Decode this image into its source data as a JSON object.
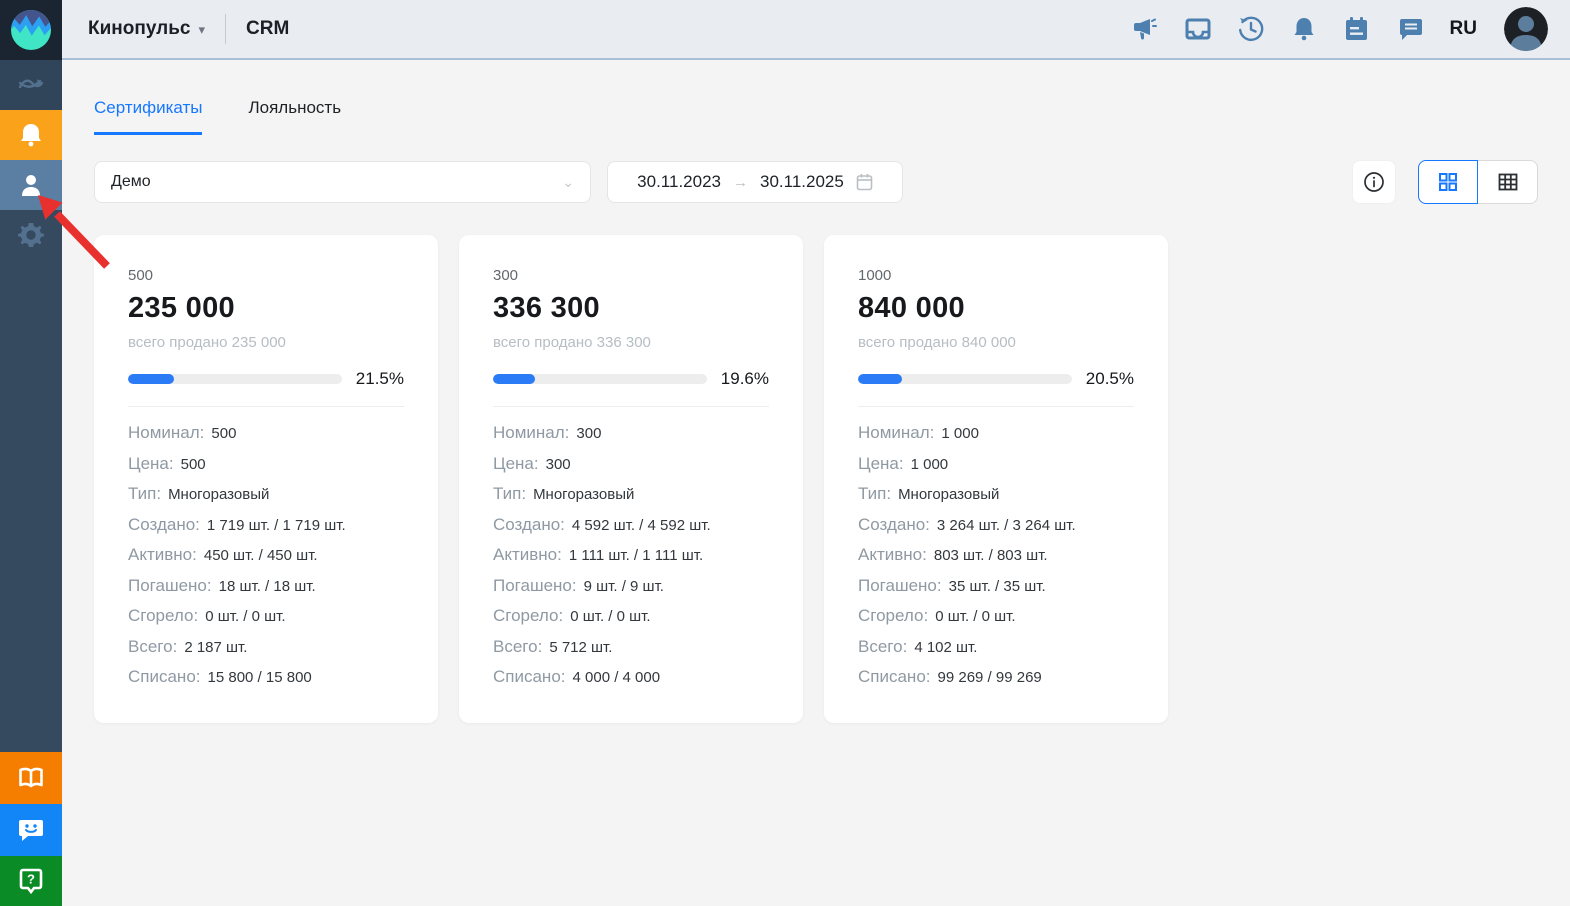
{
  "colors": {
    "accent": "#1677ff",
    "progress": "#2b7bf6",
    "arrow-red": "#e8312e",
    "sidebar-bg": "#35495f",
    "header-bg": "#e9edf2",
    "orange": "#f9a21a"
  },
  "header": {
    "brand": "Кинопульс",
    "app_title": "CRM",
    "language": "RU",
    "icons": [
      "megaphone-icon",
      "inbox-icon",
      "history-icon",
      "bell-icon",
      "calendar-icon",
      "chat-icon",
      "avatar"
    ]
  },
  "sidebar": {
    "items_top": [
      "analytics",
      "notifications (orange)",
      "contacts (selected)",
      "settings"
    ],
    "items_bottom": [
      "knowledge-base (orange)",
      "feedback-chat (blue)",
      "help (green)"
    ]
  },
  "tabs": [
    {
      "label": "Сертификаты",
      "active": true
    },
    {
      "label": "Лояльность",
      "active": false
    }
  ],
  "filters": {
    "certificate_select_value": "Демо",
    "date_from": "30.11.2023",
    "date_to": "30.11.2025"
  },
  "view_toggle": {
    "active": "grid",
    "options": [
      "grid",
      "table"
    ]
  },
  "cards": [
    {
      "title": "500",
      "total": "235 000",
      "subtitle": "всего продано 235 000",
      "progress_percent": 21.5,
      "progress_label": "21.5%",
      "details": [
        {
          "label": "Номинал:",
          "value": "500"
        },
        {
          "label": "Цена:",
          "value": "500"
        },
        {
          "label": "Тип:",
          "value": "Многоразовый"
        },
        {
          "label": "Создано:",
          "value": "1 719 шт. / 1 719 шт."
        },
        {
          "label": "Активно:",
          "value": "450 шт. / 450 шт."
        },
        {
          "label": "Погашено:",
          "value": "18 шт. / 18 шт."
        },
        {
          "label": "Сгорело:",
          "value": "0 шт. / 0 шт."
        },
        {
          "label": "Всего:",
          "value": "2 187 шт."
        },
        {
          "label": "Списано:",
          "value": "15 800 / 15 800"
        }
      ]
    },
    {
      "title": "300",
      "total": "336 300",
      "subtitle": "всего продано 336 300",
      "progress_percent": 19.6,
      "progress_label": "19.6%",
      "details": [
        {
          "label": "Номинал:",
          "value": "300"
        },
        {
          "label": "Цена:",
          "value": "300"
        },
        {
          "label": "Тип:",
          "value": "Многоразовый"
        },
        {
          "label": "Создано:",
          "value": "4 592 шт. / 4 592 шт."
        },
        {
          "label": "Активно:",
          "value": "1 111 шт. / 1 111 шт."
        },
        {
          "label": "Погашено:",
          "value": "9 шт. / 9 шт."
        },
        {
          "label": "Сгорело:",
          "value": "0 шт. / 0 шт."
        },
        {
          "label": "Всего:",
          "value": "5 712 шт."
        },
        {
          "label": "Списано:",
          "value": "4 000 / 4 000"
        }
      ]
    },
    {
      "title": "1000",
      "total": "840 000",
      "subtitle": "всего продано 840 000",
      "progress_percent": 20.5,
      "progress_label": "20.5%",
      "details": [
        {
          "label": "Номинал:",
          "value": "1 000"
        },
        {
          "label": "Цена:",
          "value": "1 000"
        },
        {
          "label": "Тип:",
          "value": "Многоразовый"
        },
        {
          "label": "Создано:",
          "value": "3 264 шт. / 3 264 шт."
        },
        {
          "label": "Активно:",
          "value": "803 шт. / 803 шт."
        },
        {
          "label": "Погашено:",
          "value": "35 шт. / 35 шт."
        },
        {
          "label": "Сгорело:",
          "value": "0 шт. / 0 шт."
        },
        {
          "label": "Всего:",
          "value": "4 102 шт."
        },
        {
          "label": "Списано:",
          "value": "99 269 / 99 269"
        }
      ]
    }
  ],
  "annotation": {
    "type": "red-arrow",
    "target": "sidebar-item-contacts"
  }
}
